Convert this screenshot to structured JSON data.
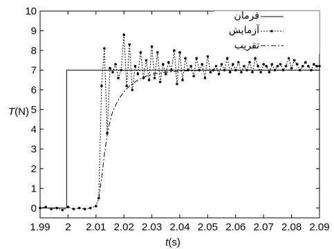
{
  "chart_data": {
    "type": "line",
    "ylabel_var": "T",
    "ylabel_unit": "(N)",
    "xlabel_var": "t",
    "xlabel_unit": "(s)",
    "xlim": [
      1.99,
      2.09
    ],
    "ylim": [
      -0.5,
      10
    ],
    "xticks": [
      "1.99",
      "2",
      "2.01",
      "2.02",
      "2.03",
      "2.04",
      "2.05",
      "2.06",
      "2.07",
      "2.08",
      "2.09"
    ],
    "yticks": [
      "0",
      "1",
      "2",
      "3",
      "4",
      "5",
      "6",
      "7",
      "8",
      "9",
      "10"
    ],
    "legend_position": "top-right",
    "series": [
      {
        "name": "فرمان",
        "style": "solid",
        "x": [
          1.99,
          1.9995,
          1.9995,
          2.09
        ],
        "y": [
          0,
          0,
          7,
          7
        ]
      },
      {
        "name": "آزمایش",
        "style": "dotted-markers",
        "x": [
          1.99,
          1.992,
          1.994,
          1.996,
          1.998,
          2.0,
          2.002,
          2.004,
          2.006,
          2.008,
          2.01,
          2.011,
          2.012,
          2.013,
          2.014,
          2.015,
          2.016,
          2.017,
          2.018,
          2.019,
          2.02,
          2.021,
          2.022,
          2.023,
          2.024,
          2.025,
          2.026,
          2.027,
          2.028,
          2.029,
          2.03,
          2.031,
          2.032,
          2.033,
          2.034,
          2.035,
          2.036,
          2.037,
          2.038,
          2.039,
          2.04,
          2.041,
          2.042,
          2.043,
          2.044,
          2.045,
          2.046,
          2.047,
          2.048,
          2.049,
          2.05,
          2.051,
          2.052,
          2.053,
          2.054,
          2.055,
          2.056,
          2.057,
          2.058,
          2.059,
          2.06,
          2.061,
          2.062,
          2.063,
          2.064,
          2.065,
          2.066,
          2.067,
          2.068,
          2.069,
          2.07,
          2.071,
          2.072,
          2.073,
          2.074,
          2.075,
          2.076,
          2.077,
          2.078,
          2.079,
          2.08,
          2.081,
          2.082,
          2.083,
          2.084,
          2.085,
          2.086,
          2.087,
          2.088,
          2.089,
          2.09
        ],
        "y": [
          0.0,
          0.05,
          -0.05,
          0.0,
          -0.1,
          0.05,
          -0.05,
          0.0,
          -0.05,
          0.0,
          0.1,
          0.5,
          6.2,
          8.1,
          3.8,
          7.1,
          6.9,
          7.3,
          6.6,
          7.0,
          8.8,
          6.2,
          8.3,
          6.0,
          7.2,
          6.8,
          7.9,
          6.6,
          7.5,
          6.5,
          8.2,
          6.6,
          7.9,
          6.4,
          7.3,
          6.8,
          7.4,
          7.0,
          8.0,
          6.3,
          7.9,
          6.5,
          7.6,
          7.0,
          7.2,
          6.7,
          7.6,
          7.0,
          7.3,
          6.6,
          7.7,
          6.9,
          7.0,
          7.2,
          6.8,
          7.3,
          7.0,
          7.6,
          6.9,
          7.3,
          7.0,
          7.4,
          6.9,
          7.2,
          7.0,
          7.4,
          6.9,
          7.6,
          7.2,
          6.9,
          7.3,
          7.2,
          6.9,
          7.3,
          7.0,
          7.2,
          7.3,
          7.0,
          7.2,
          7.6,
          7.1,
          7.5,
          7.3,
          7.0,
          7.2,
          7.4,
          7.2,
          7.0,
          7.3,
          7.2,
          7.2
        ]
      },
      {
        "name": "تقریب",
        "style": "dashdot",
        "x": [
          2.011,
          2.012,
          2.013,
          2.014,
          2.015,
          2.016,
          2.018,
          2.02,
          2.022,
          2.025,
          2.028,
          2.031,
          2.035,
          2.04,
          2.045,
          2.05,
          2.055,
          2.06,
          2.07,
          2.08,
          2.09
        ],
        "y": [
          0.5,
          1.5,
          2.7,
          3.7,
          4.4,
          4.9,
          5.5,
          5.9,
          6.2,
          6.5,
          6.7,
          6.82,
          6.9,
          6.95,
          6.98,
          7.0,
          7.0,
          7.0,
          7.0,
          7.0,
          7.0
        ]
      }
    ]
  }
}
